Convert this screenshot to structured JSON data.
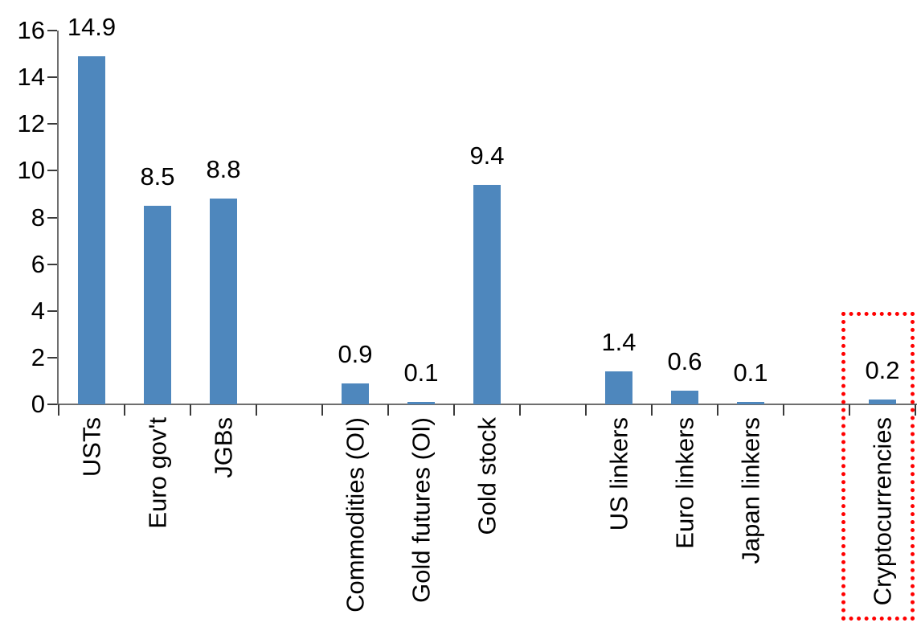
{
  "chart_data": {
    "type": "bar",
    "title": "",
    "xlabel": "",
    "ylabel": "",
    "categories": [
      "USTs",
      "Euro gov't",
      "JGBs",
      "",
      "Commodities (OI)",
      "Gold futures (OI)",
      "Gold stock",
      "",
      "US linkers",
      "Euro linkers",
      "Japan linkers",
      "",
      "Cryptocurrencies"
    ],
    "values": [
      14.9,
      8.5,
      8.8,
      null,
      0.9,
      0.1,
      9.4,
      null,
      1.4,
      0.6,
      0.1,
      null,
      0.2
    ],
    "data_labels": [
      "14.9",
      "8.5",
      "8.8",
      null,
      "0.9",
      "0.1",
      "9.4",
      null,
      "1.4",
      "0.6",
      "0.1",
      null,
      "0.2"
    ],
    "ylim": [
      0,
      16
    ],
    "yticks": [
      "0",
      "2",
      "4",
      "6",
      "8",
      "10",
      "12",
      "14",
      "16"
    ],
    "grid": false,
    "legend": null,
    "bar_color": "#4E87BD",
    "axis_color": "#6E6E6E",
    "tick_color": "#3a3a3a",
    "text_color": "#000000",
    "highlight": {
      "category": "Cryptocurrencies",
      "style": "dotted-box",
      "color": "#FF0000"
    }
  }
}
